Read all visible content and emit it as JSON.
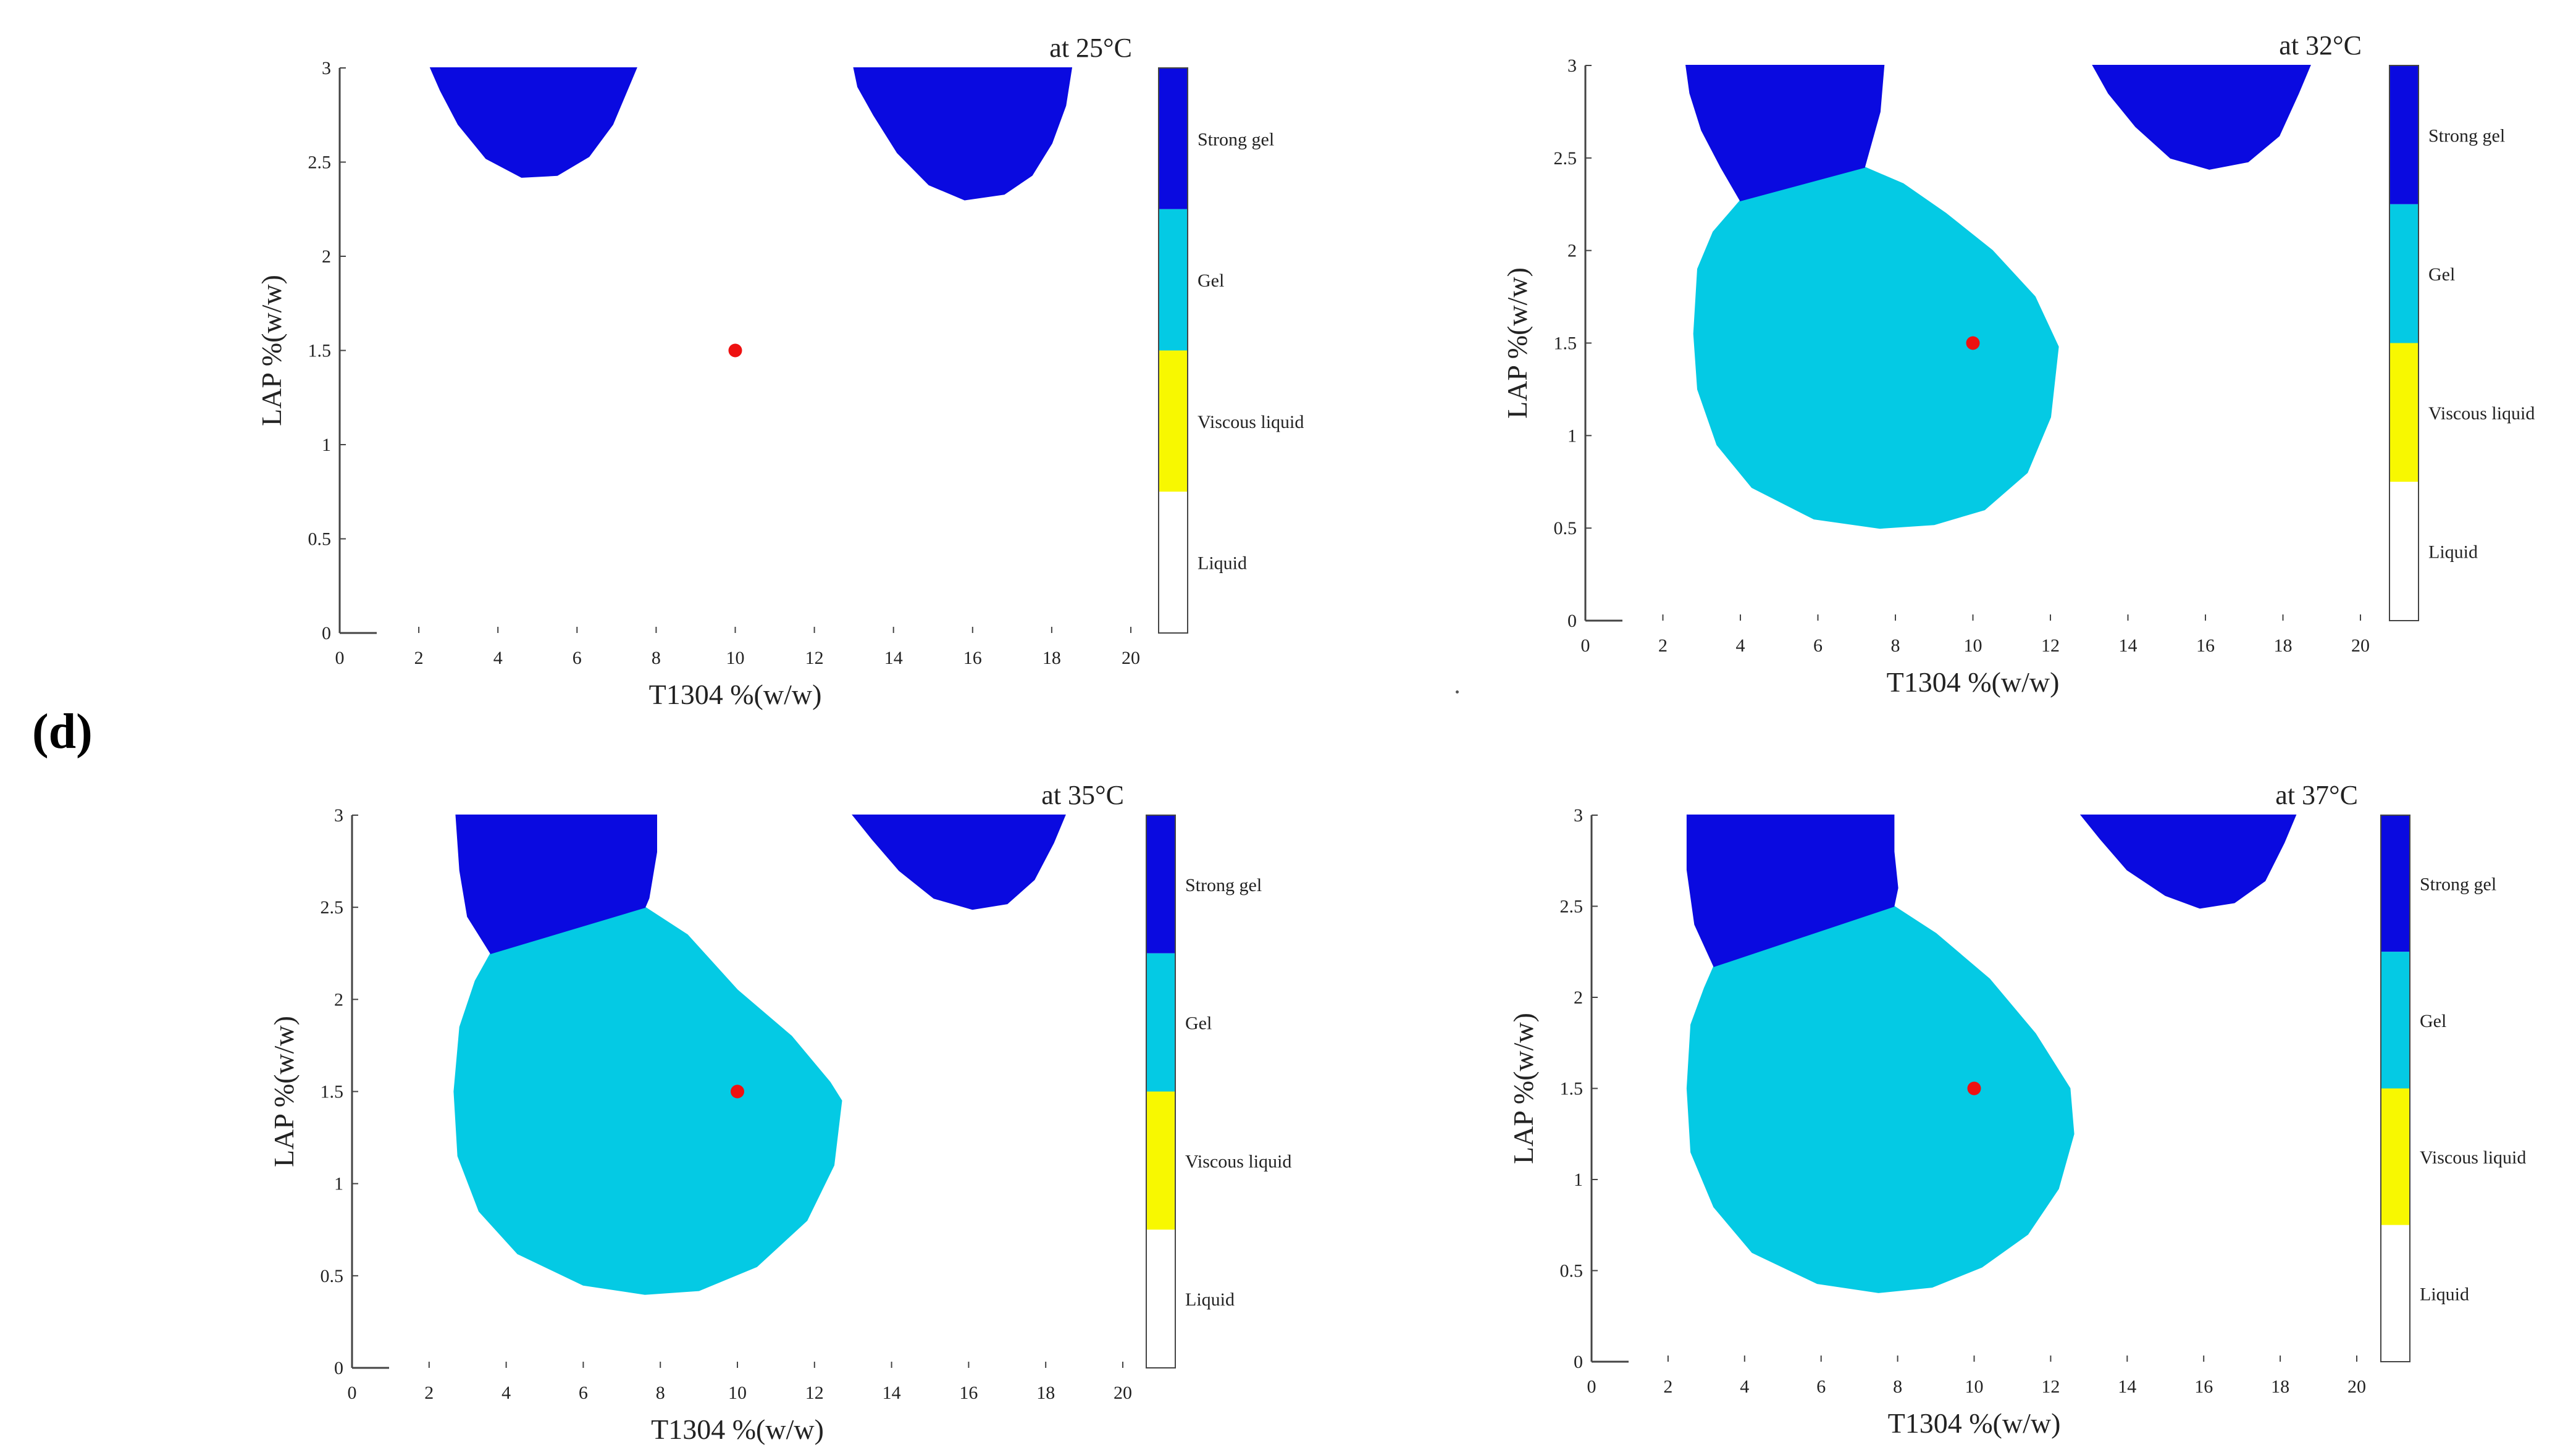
{
  "figure_label": "(d)",
  "colors": {
    "strong_gel": "#0a0ae0",
    "gel": "#04cae4",
    "viscous_liquid": "#f8f800",
    "liquid": "#ffffff",
    "point": "#ee1111",
    "axis": "#444444"
  },
  "chart_data": [
    {
      "type": "heatmap",
      "title": "at 25°C",
      "xlabel": "T1304 %(w/w)",
      "ylabel": "LAP %(w/w)",
      "xlim": [
        0,
        20
      ],
      "ylim": [
        0,
        3
      ],
      "xticks": [
        "0",
        "2",
        "4",
        "6",
        "8",
        "10",
        "12",
        "14",
        "16",
        "18",
        "20"
      ],
      "yticks": [
        "0",
        "0.5",
        "1",
        "1.5",
        "2",
        "2.5",
        "3"
      ],
      "categories": [
        "Strong gel",
        "Gel",
        "Viscous liquid",
        "Liquid"
      ],
      "regions": [
        {
          "class": "Strong gel",
          "boundary": [
            [
              2.3,
              3
            ],
            [
              7.5,
              3
            ],
            [
              7.3,
              2.9
            ],
            [
              6.9,
              2.7
            ],
            [
              6.3,
              2.53
            ],
            [
              5.5,
              2.43
            ],
            [
              4.6,
              2.42
            ],
            [
              3.7,
              2.52
            ],
            [
              3.0,
              2.7
            ],
            [
              2.55,
              2.88
            ]
          ]
        },
        {
          "class": "Strong gel",
          "boundary": [
            [
              13.0,
              3
            ],
            [
              18.5,
              3
            ],
            [
              18.35,
              2.8
            ],
            [
              18.0,
              2.6
            ],
            [
              17.5,
              2.43
            ],
            [
              16.8,
              2.33
            ],
            [
              15.8,
              2.3
            ],
            [
              14.9,
              2.38
            ],
            [
              14.1,
              2.55
            ],
            [
              13.5,
              2.75
            ],
            [
              13.1,
              2.9
            ]
          ]
        }
      ],
      "point": {
        "x": 10,
        "y": 1.5
      }
    },
    {
      "type": "heatmap",
      "title": "at 32°C",
      "xlabel": "T1304 %(w/w)",
      "ylabel": "LAP %(w/w)",
      "xlim": [
        0,
        20
      ],
      "ylim": [
        0,
        3
      ],
      "xticks": [
        "0",
        "2",
        "4",
        "6",
        "8",
        "10",
        "12",
        "14",
        "16",
        "18",
        "20"
      ],
      "yticks": [
        "0",
        "0.5",
        "1",
        "1.5",
        "2",
        "2.5",
        "3"
      ],
      "categories": [
        "Strong gel",
        "Gel",
        "Viscous liquid",
        "Liquid"
      ],
      "regions": [
        {
          "class": "Gel",
          "boundary": [
            [
              4.0,
              2.27
            ],
            [
              7.2,
              2.45
            ],
            [
              8.2,
              2.36
            ],
            [
              9.3,
              2.2
            ],
            [
              10.5,
              2.0
            ],
            [
              11.6,
              1.75
            ],
            [
              12.2,
              1.48
            ],
            [
              12.0,
              1.1
            ],
            [
              11.4,
              0.8
            ],
            [
              10.3,
              0.6
            ],
            [
              9.0,
              0.52
            ],
            [
              7.6,
              0.5
            ],
            [
              5.9,
              0.55
            ],
            [
              4.3,
              0.72
            ],
            [
              3.4,
              0.95
            ],
            [
              2.9,
              1.25
            ],
            [
              2.8,
              1.55
            ],
            [
              2.9,
              1.9
            ],
            [
              3.3,
              2.1
            ]
          ]
        },
        {
          "class": "Strong gel",
          "boundary": [
            [
              2.6,
              3
            ],
            [
              7.7,
              3
            ],
            [
              7.6,
              2.75
            ],
            [
              7.2,
              2.45
            ],
            [
              4.0,
              2.27
            ],
            [
              3.5,
              2.45
            ],
            [
              3.0,
              2.65
            ],
            [
              2.7,
              2.85
            ]
          ]
        },
        {
          "class": "Strong gel",
          "boundary": [
            [
              13.1,
              3
            ],
            [
              18.7,
              3
            ],
            [
              18.4,
              2.85
            ],
            [
              17.9,
              2.62
            ],
            [
              17.1,
              2.48
            ],
            [
              16.1,
              2.44
            ],
            [
              15.1,
              2.5
            ],
            [
              14.2,
              2.67
            ],
            [
              13.5,
              2.85
            ]
          ]
        }
      ],
      "point": {
        "x": 10,
        "y": 1.5
      }
    },
    {
      "type": "heatmap",
      "title": "at 35°C",
      "xlabel": "T1304 %(w/w)",
      "ylabel": "LAP %(w/w)",
      "xlim": [
        0,
        20
      ],
      "ylim": [
        0,
        3
      ],
      "xticks": [
        "0",
        "2",
        "4",
        "6",
        "8",
        "10",
        "12",
        "14",
        "16",
        "18",
        "20"
      ],
      "yticks": [
        "0",
        "0.5",
        "1",
        "1.5",
        "2",
        "2.5",
        "3"
      ],
      "categories": [
        "Strong gel",
        "Gel",
        "Viscous liquid",
        "Liquid"
      ],
      "regions": [
        {
          "class": "Gel",
          "boundary": [
            [
              3.6,
              2.25
            ],
            [
              7.6,
              2.5
            ],
            [
              8.7,
              2.35
            ],
            [
              10.0,
              2.05
            ],
            [
              11.4,
              1.8
            ],
            [
              12.4,
              1.55
            ],
            [
              12.7,
              1.45
            ],
            [
              12.5,
              1.1
            ],
            [
              11.8,
              0.8
            ],
            [
              10.5,
              0.55
            ],
            [
              9.0,
              0.42
            ],
            [
              7.6,
              0.4
            ],
            [
              6.0,
              0.45
            ],
            [
              4.3,
              0.62
            ],
            [
              3.3,
              0.85
            ],
            [
              2.75,
              1.15
            ],
            [
              2.65,
              1.5
            ],
            [
              2.8,
              1.85
            ],
            [
              3.2,
              2.1
            ]
          ]
        },
        {
          "class": "Strong gel",
          "boundary": [
            [
              2.7,
              3
            ],
            [
              7.9,
              3
            ],
            [
              7.9,
              2.8
            ],
            [
              7.7,
              2.55
            ],
            [
              7.6,
              2.5
            ],
            [
              3.6,
              2.25
            ],
            [
              3.0,
              2.45
            ],
            [
              2.8,
              2.7
            ]
          ]
        },
        {
          "class": "Strong gel",
          "boundary": [
            [
              13.0,
              3
            ],
            [
              18.5,
              3
            ],
            [
              18.2,
              2.85
            ],
            [
              17.7,
              2.65
            ],
            [
              17.0,
              2.52
            ],
            [
              16.1,
              2.49
            ],
            [
              15.1,
              2.55
            ],
            [
              14.2,
              2.7
            ],
            [
              13.5,
              2.87
            ]
          ]
        }
      ],
      "point": {
        "x": 10,
        "y": 1.5
      }
    },
    {
      "type": "heatmap",
      "title": "at 37°C",
      "xlabel": "T1304 %(w/w)",
      "ylabel": "LAP %(w/w)",
      "xlim": [
        0,
        20
      ],
      "ylim": [
        0,
        3
      ],
      "xticks": [
        "0",
        "2",
        "4",
        "6",
        "8",
        "10",
        "12",
        "14",
        "16",
        "18",
        "20"
      ],
      "yticks": [
        "0",
        "0.5",
        "1",
        "1.5",
        "2",
        "2.5",
        "3"
      ],
      "categories": [
        "Strong gel",
        "Gel",
        "Viscous liquid",
        "Liquid"
      ],
      "regions": [
        {
          "class": "Gel",
          "boundary": [
            [
              3.2,
              2.17
            ],
            [
              7.9,
              2.5
            ],
            [
              9.0,
              2.35
            ],
            [
              10.4,
              2.1
            ],
            [
              11.6,
              1.8
            ],
            [
              12.5,
              1.5
            ],
            [
              12.6,
              1.25
            ],
            [
              12.2,
              0.95
            ],
            [
              11.4,
              0.7
            ],
            [
              10.2,
              0.52
            ],
            [
              8.9,
              0.41
            ],
            [
              7.5,
              0.38
            ],
            [
              5.9,
              0.43
            ],
            [
              4.2,
              0.6
            ],
            [
              3.2,
              0.85
            ],
            [
              2.6,
              1.15
            ],
            [
              2.5,
              1.5
            ],
            [
              2.6,
              1.85
            ],
            [
              2.95,
              2.05
            ]
          ]
        },
        {
          "class": "Strong gel",
          "boundary": [
            [
              2.5,
              3
            ],
            [
              7.9,
              3
            ],
            [
              7.9,
              2.8
            ],
            [
              8.0,
              2.6
            ],
            [
              7.9,
              2.5
            ],
            [
              3.2,
              2.17
            ],
            [
              2.7,
              2.4
            ],
            [
              2.5,
              2.7
            ]
          ]
        },
        {
          "class": "Strong gel",
          "boundary": [
            [
              12.8,
              3
            ],
            [
              18.4,
              3
            ],
            [
              18.1,
              2.85
            ],
            [
              17.6,
              2.64
            ],
            [
              16.8,
              2.52
            ],
            [
              15.9,
              2.49
            ],
            [
              15.0,
              2.56
            ],
            [
              14.0,
              2.7
            ],
            [
              13.3,
              2.87
            ]
          ]
        }
      ],
      "point": {
        "x": 10,
        "y": 1.5
      }
    }
  ]
}
